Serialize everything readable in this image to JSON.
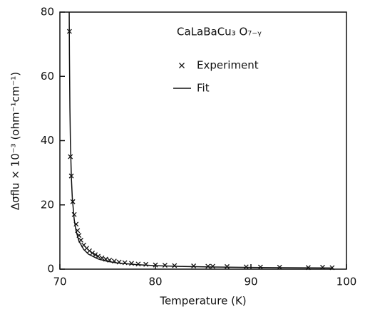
{
  "chart_data": {
    "type": "scatter",
    "annotation": "CaLaBaCu₃ O₇₋ᵧ",
    "xlabel": "Temperature (K)",
    "ylabel": "Δσflu × 10⁻³ (ohm⁻¹cm⁻¹)",
    "xlim": [
      70,
      100
    ],
    "xticks": [
      70,
      80,
      90,
      100
    ],
    "ylim": [
      0,
      80
    ],
    "yticks": [
      0,
      20,
      40,
      60,
      80
    ],
    "color": "#111111",
    "series": [
      {
        "name": "Experiment",
        "type": "scatter",
        "marker": "x",
        "x": [
          71.0,
          71.1,
          71.2,
          71.35,
          71.5,
          71.7,
          71.85,
          72.0,
          72.2,
          72.5,
          72.8,
          73.1,
          73.4,
          73.7,
          74.0,
          74.4,
          74.8,
          75.2,
          75.7,
          76.2,
          76.8,
          77.5,
          78.2,
          79,
          80,
          81,
          82,
          84,
          85.5,
          86,
          87.5,
          89.5,
          91,
          93,
          96,
          97.5,
          98.5
        ],
        "values": [
          74,
          35,
          29,
          21,
          17,
          14,
          12,
          10.5,
          9,
          7.5,
          6.5,
          5.7,
          5.0,
          4.5,
          4.0,
          3.5,
          3.1,
          2.8,
          2.5,
          2.2,
          2.0,
          1.8,
          1.6,
          1.5,
          1.3,
          1.2,
          1.1,
          1.0,
          0.9,
          0.9,
          0.8,
          0.7,
          0.65,
          0.6,
          0.5,
          0.6,
          0.45
        ]
      },
      {
        "name": "Fit",
        "type": "line",
        "x": [
          70.975,
          71.0,
          71.05,
          71.1,
          71.2,
          71.3,
          71.5,
          71.7,
          72,
          72.5,
          73,
          74,
          75,
          76,
          78,
          80,
          83,
          86,
          90,
          94,
          98.5
        ],
        "values": [
          80,
          66.7,
          50,
          40,
          28.6,
          22.2,
          15.4,
          11.8,
          8.7,
          6.1,
          4.65,
          3.17,
          2.41,
          1.94,
          1.4,
          1.09,
          0.82,
          0.66,
          0.52,
          0.43,
          0.36
        ]
      }
    ]
  }
}
